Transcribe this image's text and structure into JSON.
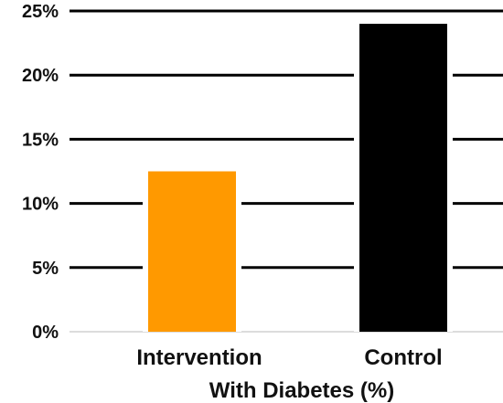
{
  "chart_data": {
    "type": "bar",
    "categories": [
      "Intervention",
      "Control"
    ],
    "values": [
      12.5,
      24
    ],
    "colors": [
      "#FF9900",
      "#000000"
    ],
    "xlabel": "With Diabetes (%)",
    "ylabel": "",
    "ylim": [
      0,
      25
    ],
    "yticks": [
      0,
      5,
      10,
      15,
      20,
      25
    ],
    "ytick_labels": [
      "0%",
      "5%",
      "10%",
      "15%",
      "20%",
      "25%"
    ],
    "grid": true
  }
}
